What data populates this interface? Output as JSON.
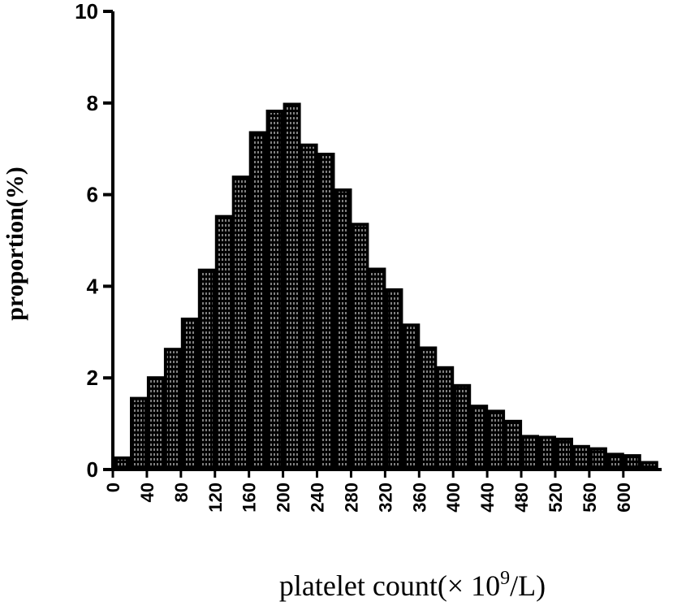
{
  "chart_data": {
    "type": "bar",
    "title": "",
    "xlabel_parts": [
      "platelet count(×  10",
      "9",
      "/L)"
    ],
    "ylabel": "proportion(%)",
    "ylim": [
      0,
      10
    ],
    "y_ticks": [
      0,
      2,
      4,
      6,
      8,
      10
    ],
    "x_ticks": [
      0,
      40,
      80,
      120,
      160,
      200,
      240,
      280,
      320,
      360,
      400,
      440,
      480,
      520,
      560,
      600
    ],
    "bin_width": 20,
    "x": [
      0,
      20,
      40,
      60,
      80,
      100,
      120,
      140,
      160,
      180,
      200,
      220,
      240,
      260,
      280,
      300,
      320,
      340,
      360,
      380,
      400,
      420,
      440,
      460,
      480,
      500,
      520,
      540,
      560,
      580,
      600,
      620
    ],
    "values": [
      0.25,
      1.55,
      2.0,
      2.62,
      3.28,
      4.35,
      5.52,
      6.38,
      7.35,
      7.82,
      7.97,
      7.08,
      6.88,
      6.1,
      5.35,
      4.37,
      3.92,
      3.15,
      2.65,
      2.22,
      1.83,
      1.38,
      1.27,
      1.05,
      0.72,
      0.7,
      0.66,
      0.5,
      0.45,
      0.33,
      0.3,
      0.15
    ],
    "grid": false,
    "legend": "none",
    "bar_fill": "#000000",
    "bar_stripe": "#ffffff"
  }
}
